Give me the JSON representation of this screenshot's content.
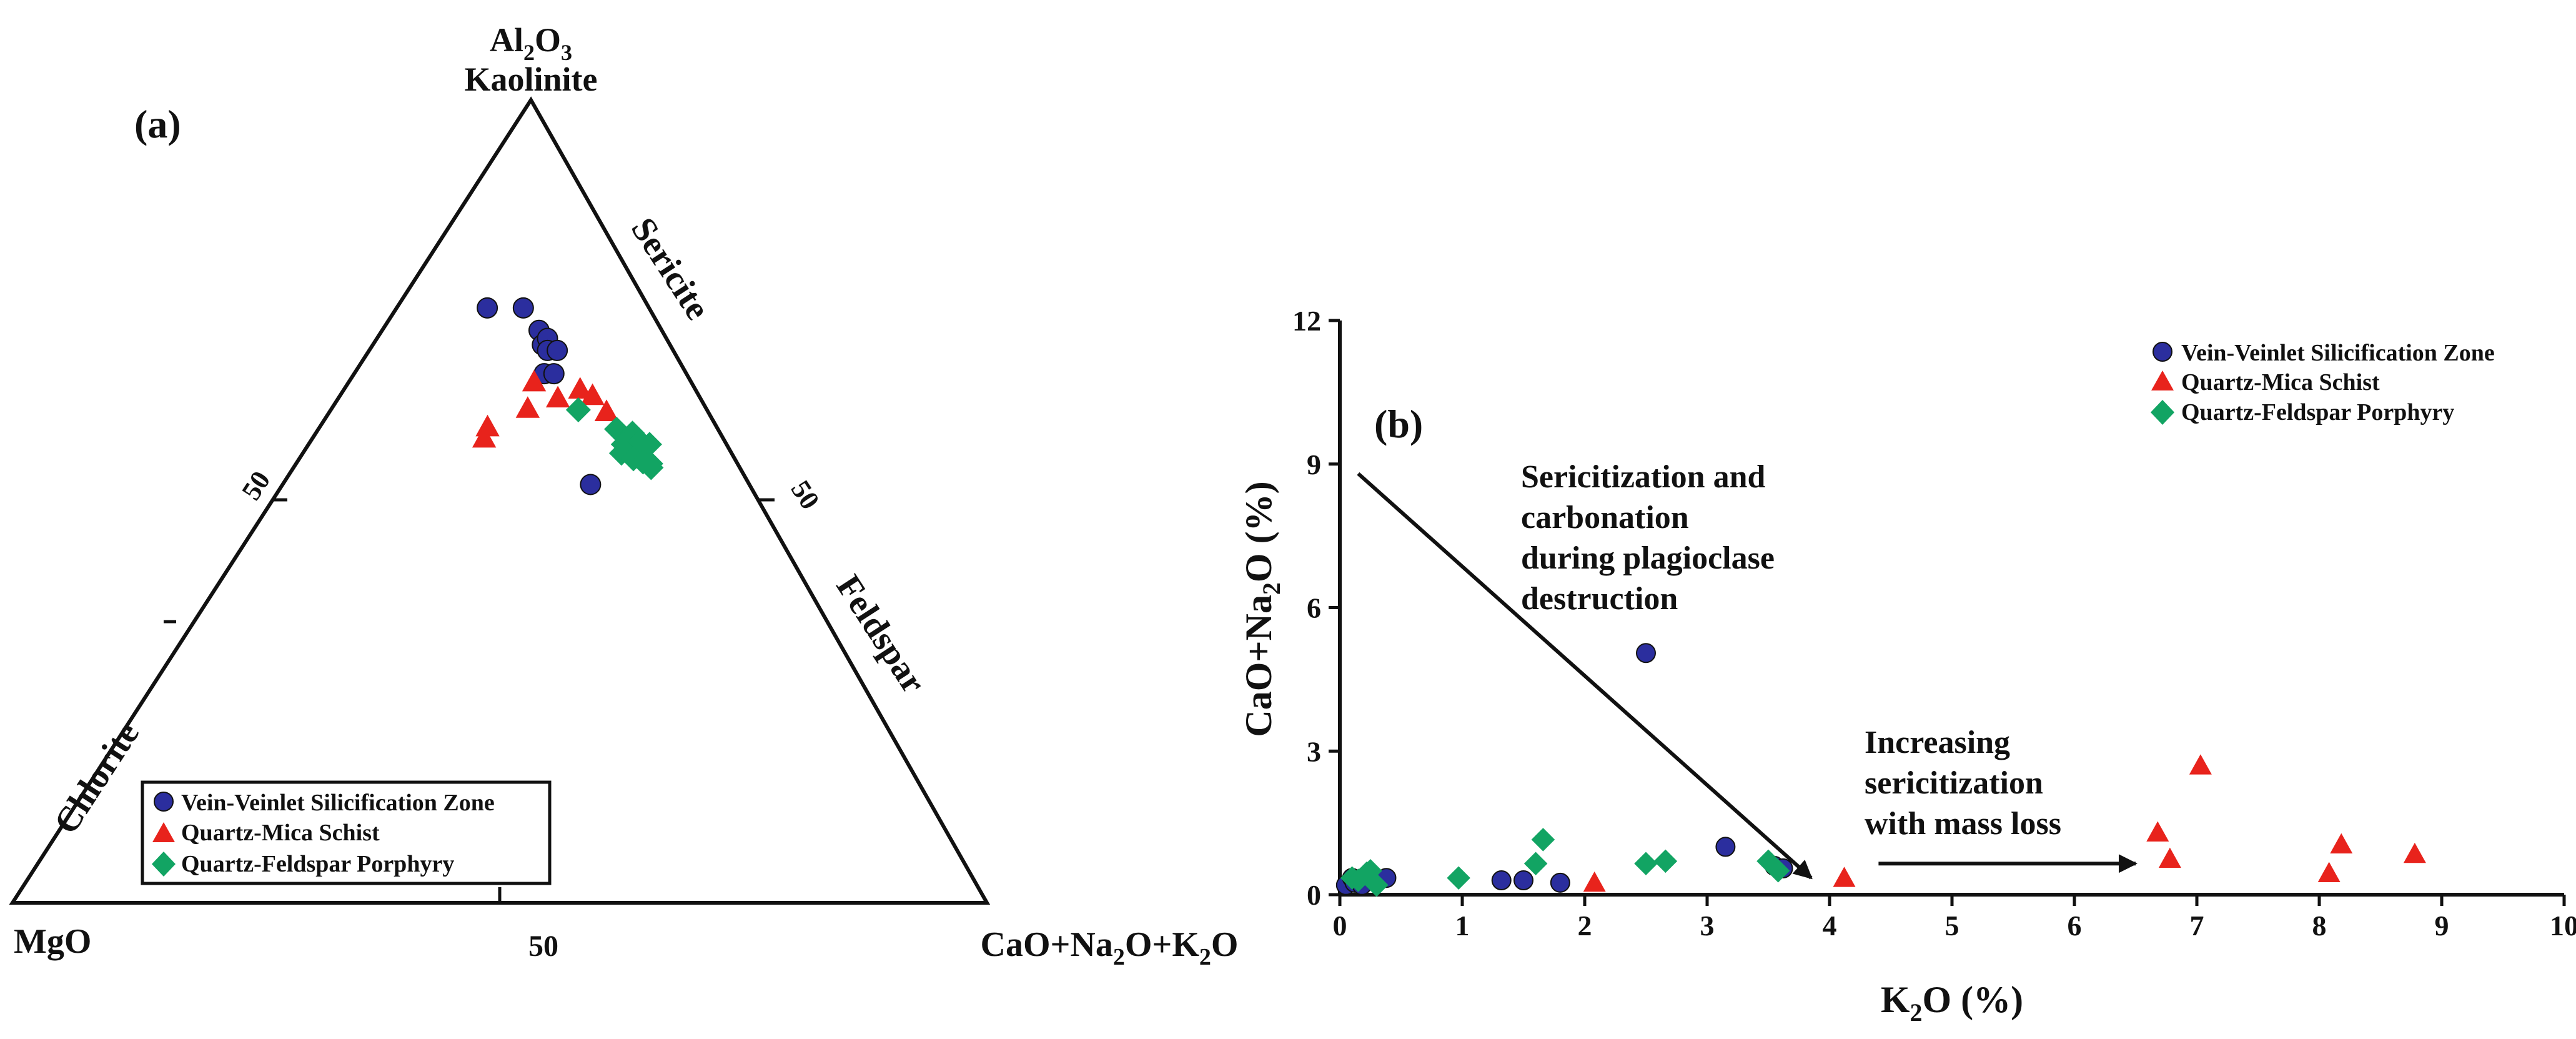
{
  "colors": {
    "vein": "#2b2e9e",
    "schist": "#e8231c",
    "porphyry": "#12a463",
    "axis": "#111111",
    "background": "#ffffff"
  },
  "chart_data": [
    {
      "type": "scatter",
      "subtype": "ternary",
      "panel_label": "(a)",
      "apex_top": {
        "formula": [
          "Al",
          "2",
          "O",
          "3"
        ],
        "mineral": "Kaolinite"
      },
      "apex_left": "MgO",
      "apex_right": {
        "formula": [
          "CaO+Na",
          "2",
          "O+K",
          "2",
          "O"
        ]
      },
      "edge_labels": [
        "Sericite",
        "Feldspar",
        "Chlorite"
      ],
      "tick_labels": {
        "left": "50",
        "right": "50",
        "bottom": "50"
      },
      "component_order": [
        "Al2O3",
        "MgO",
        "CaO+Na2O+K2O"
      ],
      "legend": {
        "position": "bottom-left",
        "entries": [
          "Vein-Veinlet Silicification Zone",
          "Quartz-Mica Schist",
          "Quartz-Feldspar Porphyry"
        ]
      },
      "series": [
        {
          "name": "Vein-Veinlet Silicification Zone",
          "marker": "circle",
          "points": [
            [
              74.1,
              16.6,
              9.3
            ],
            [
              74.1,
              12.9,
              13.0
            ],
            [
              71.3,
              12.6,
              16.1
            ],
            [
              69.5,
              13.1,
              17.4
            ],
            [
              70.3,
              12.2,
              17.5
            ],
            [
              68.8,
              12.9,
              18.3
            ],
            [
              68.8,
              11.9,
              19.3
            ],
            [
              65.9,
              14.6,
              19.5
            ],
            [
              65.9,
              13.6,
              20.5
            ],
            [
              52.1,
              16.3,
              31.6
            ]
          ]
        },
        {
          "name": "Quartz-Mica Schist",
          "marker": "triangle",
          "points": [
            [
              64.9,
              16.1,
              19.0
            ],
            [
              62.9,
              14.6,
              22.5
            ],
            [
              64.0,
              11.8,
              24.2
            ],
            [
              63.2,
              10.9,
              25.9
            ],
            [
              61.2,
              10.4,
              28.4
            ],
            [
              61.6,
              18.3,
              20.1
            ],
            [
              59.3,
              23.5,
              17.2
            ],
            [
              57.9,
              24.5,
              17.6
            ]
          ]
        },
        {
          "name": "Quartz-Feldspar Porphyry",
          "marker": "diamond",
          "points": [
            [
              61.4,
              13.2,
              25.4
            ],
            [
              59.0,
              10.4,
              30.6
            ],
            [
              58.5,
              9.0,
              32.5
            ],
            [
              57.9,
              9.7,
              32.4
            ],
            [
              57.1,
              10.6,
              32.3
            ],
            [
              57.5,
              8.7,
              33.8
            ],
            [
              57.1,
              7.9,
              35.0
            ],
            [
              56.0,
              11.3,
              32.7
            ],
            [
              55.3,
              10.4,
              34.3
            ],
            [
              54.9,
              9.6,
              35.5
            ],
            [
              54.7,
              8.9,
              36.4
            ],
            [
              54.2,
              9.1,
              36.7
            ]
          ]
        }
      ]
    },
    {
      "type": "scatter",
      "panel_label": "(b)",
      "xlabel": {
        "parts": [
          "K",
          "2",
          "O (%)"
        ]
      },
      "ylabel": {
        "parts": [
          "CaO+Na",
          "2",
          "O (%)"
        ]
      },
      "xlim": [
        0,
        10
      ],
      "ylim": [
        0,
        12
      ],
      "x_ticks": [
        0,
        1,
        2,
        3,
        4,
        5,
        6,
        7,
        8,
        9,
        10
      ],
      "y_ticks": [
        0,
        3,
        6,
        9,
        12
      ],
      "x_tick_labels": [
        "0",
        "1",
        "2",
        "3",
        "4",
        "5",
        "6",
        "7",
        "8",
        "9",
        "10"
      ],
      "y_tick_labels": [
        "0",
        "3",
        "6",
        "9",
        "12"
      ],
      "legend": {
        "position": "top-right",
        "entries": [
          "Vein-Veinlet Silicification Zone",
          "Quartz-Mica Schist",
          "Quartz-Feldspar Porphyry"
        ]
      },
      "annotations": [
        {
          "lines": [
            "Sericitization and",
            "carbonation",
            "during plagioclase",
            "destruction"
          ],
          "arrow_from": [
            0.15,
            8.8
          ],
          "arrow_to": [
            3.85,
            0.35
          ]
        },
        {
          "lines": [
            "Increasing",
            "sericitization",
            "with mass loss"
          ],
          "arrow_from": [
            4.4,
            0.65
          ],
          "arrow_to": [
            6.5,
            0.65
          ]
        }
      ],
      "series": [
        {
          "name": "Vein-Veinlet Silicification Zone",
          "marker": "circle",
          "x": [
            0.05,
            0.1,
            0.12,
            0.15,
            0.18,
            0.22,
            0.28,
            0.38,
            1.32,
            1.5,
            1.8,
            2.5,
            3.15,
            3.55,
            3.62
          ],
          "y": [
            0.2,
            0.35,
            0.25,
            0.3,
            0.2,
            0.4,
            0.3,
            0.35,
            0.3,
            0.3,
            0.25,
            5.05,
            1.0,
            0.6,
            0.55
          ]
        },
        {
          "name": "Quartz-Mica Schist",
          "marker": "triangle",
          "x": [
            2.08,
            4.12,
            6.68,
            6.78,
            7.03,
            8.08,
            8.18,
            8.78
          ],
          "y": [
            0.25,
            0.35,
            1.3,
            0.75,
            2.7,
            0.45,
            1.05,
            0.85
          ]
        },
        {
          "name": "Quartz-Feldspar Porphyry",
          "marker": "diamond",
          "x": [
            0.1,
            0.15,
            0.22,
            0.25,
            0.3,
            0.97,
            1.6,
            1.66,
            2.5,
            2.66,
            3.5,
            3.58
          ],
          "y": [
            0.35,
            0.3,
            0.45,
            0.5,
            0.2,
            0.35,
            0.65,
            1.15,
            0.65,
            0.7,
            0.7,
            0.5
          ]
        }
      ]
    }
  ]
}
